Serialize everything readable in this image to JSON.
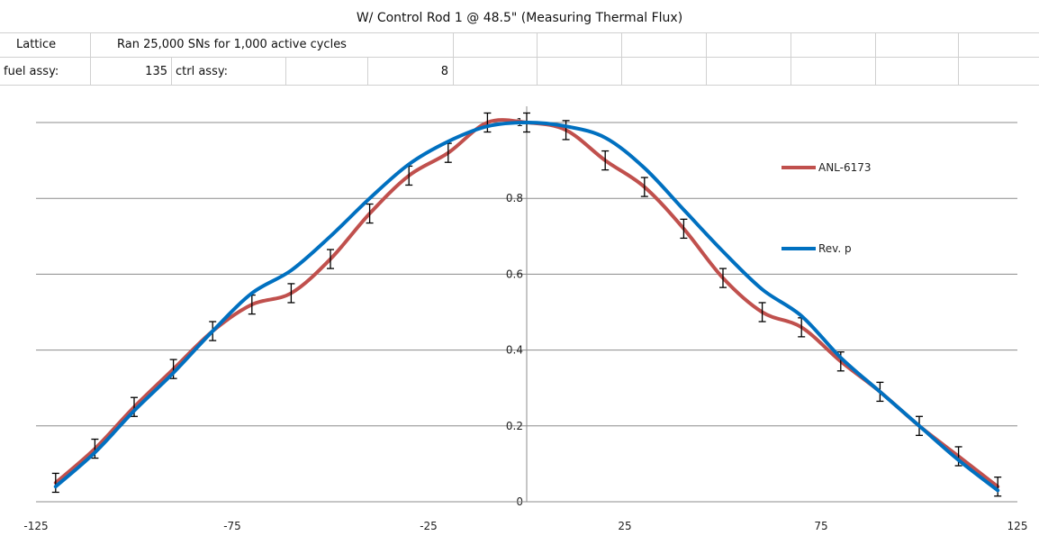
{
  "sheet": {
    "title": "W/ Control Rod 1 @ 48.5\" (Measuring Thermal Flux)",
    "row1": {
      "a": "Lattice",
      "b": "Ran 25,000 SNs for 1,000 active cycles"
    },
    "row2": {
      "a": "fuel assy:",
      "b": "135",
      "c": "ctrl assy:",
      "d": "8"
    }
  },
  "chart_data": {
    "type": "line",
    "title": "",
    "xlabel": "",
    "ylabel": "",
    "xlim": [
      -125,
      125
    ],
    "ylim": [
      0,
      1
    ],
    "x_ticks": [
      -125,
      -75,
      -25,
      25,
      75,
      125
    ],
    "y_ticks": [
      0,
      0.2,
      0.4,
      0.6,
      0.8,
      1
    ],
    "grid": "horizontal",
    "legend": "right",
    "series": [
      {
        "name": "ANL-6173",
        "color": "#c0504d",
        "error_bars": true,
        "error": 0.025,
        "x": [
          -120,
          -110,
          -100,
          -90,
          -80,
          -70,
          -60,
          -50,
          -40,
          -30,
          -20,
          -10,
          0,
          10,
          20,
          30,
          40,
          50,
          60,
          70,
          80,
          90,
          100,
          110,
          120
        ],
        "y": [
          0.05,
          0.14,
          0.25,
          0.35,
          0.45,
          0.52,
          0.55,
          0.64,
          0.76,
          0.86,
          0.92,
          1.0,
          1.0,
          0.98,
          0.9,
          0.83,
          0.72,
          0.59,
          0.5,
          0.46,
          0.37,
          0.29,
          0.2,
          0.12,
          0.04
        ]
      },
      {
        "name": "Rev. p",
        "color": "#0070c0",
        "error_bars": false,
        "x": [
          -120,
          -110,
          -100,
          -90,
          -80,
          -70,
          -60,
          -50,
          -40,
          -30,
          -20,
          -10,
          0,
          10,
          20,
          30,
          40,
          50,
          60,
          70,
          80,
          90,
          100,
          110,
          120
        ],
        "y": [
          0.04,
          0.13,
          0.24,
          0.34,
          0.45,
          0.55,
          0.61,
          0.7,
          0.8,
          0.89,
          0.95,
          0.99,
          1.0,
          0.99,
          0.96,
          0.88,
          0.77,
          0.66,
          0.56,
          0.49,
          0.38,
          0.29,
          0.2,
          0.11,
          0.03
        ]
      }
    ]
  }
}
